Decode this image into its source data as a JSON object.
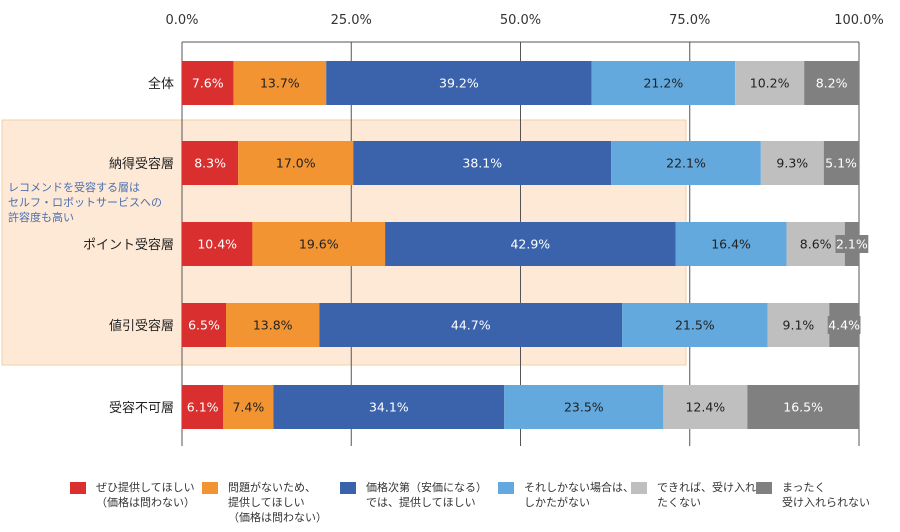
{
  "chart_data": {
    "type": "bar",
    "orientation": "horizontal",
    "stacked": true,
    "categories": [
      "全体",
      "納得受容層",
      "ポイント受容層",
      "値引受容層",
      "受容不可層"
    ],
    "series": [
      {
        "name": "ぜひ提供してほしい\n（価格は問わない）",
        "color": "#d92f2f",
        "label_color": "#ffffff",
        "values": [
          7.6,
          8.3,
          10.4,
          6.5,
          6.1
        ],
        "labels": [
          "7.6%",
          "8.3%",
          "10.4%",
          "6.5%",
          "6.1%"
        ]
      },
      {
        "name": "問題がないため、\n提供してほしい\n（価格は問わない）",
        "color": "#f39433",
        "label_color": "#222222",
        "values": [
          13.7,
          17.0,
          19.6,
          13.8,
          7.4
        ],
        "labels": [
          "13.7%",
          "17.0%",
          "19.6%",
          "13.8%",
          "7.4%"
        ]
      },
      {
        "name": "価格次第（安価になる）\nでは、提供してほしい",
        "color": "#3b63ab",
        "label_color": "#ffffff",
        "values": [
          39.2,
          38.1,
          42.9,
          44.7,
          34.1
        ],
        "labels": [
          "39.2%",
          "38.1%",
          "42.9%",
          "44.7%",
          "34.1%"
        ]
      },
      {
        "name": "それしかない場合は、\nしかたがない",
        "color": "#63a9dd",
        "label_color": "#222222",
        "values": [
          21.2,
          22.1,
          16.4,
          21.5,
          23.5
        ],
        "labels": [
          "21.2%",
          "22.1%",
          "16.4%",
          "21.5%",
          "23.5%"
        ]
      },
      {
        "name": "できれば、受け入れ\nたくない",
        "color": "#bfbfbf",
        "label_color": "#222222",
        "values": [
          10.2,
          9.3,
          8.6,
          9.1,
          12.4
        ],
        "labels": [
          "10.2%",
          "9.3%",
          "8.6%",
          "9.1%",
          "12.4%"
        ]
      },
      {
        "name": "まったく\n受け入れられない",
        "color": "#808080",
        "label_color": "#ffffff",
        "values": [
          8.2,
          5.1,
          2.1,
          4.4,
          16.5
        ],
        "labels": [
          "8.2%",
          "5.1%",
          "2.1%",
          "4.4%",
          "16.5%"
        ]
      }
    ],
    "x_ticks": [
      "0.0%",
      "25.0%",
      "50.0%",
      "75.0%",
      "100.0%"
    ],
    "x_tick_values": [
      0,
      25,
      50,
      75,
      100
    ],
    "xlim": [
      0,
      100
    ],
    "grid": true,
    "legend_position": "bottom",
    "highlight": {
      "categories": [
        "納得受容層",
        "ポイント受容層",
        "値引受容層"
      ],
      "note": "レコメンドを受容する層は\nセルフ・ロボットサービスへの\n許容度も高い",
      "fill": "#fde9d6",
      "border": "#f2cfa8",
      "note_color": "#4a6fb0"
    }
  }
}
